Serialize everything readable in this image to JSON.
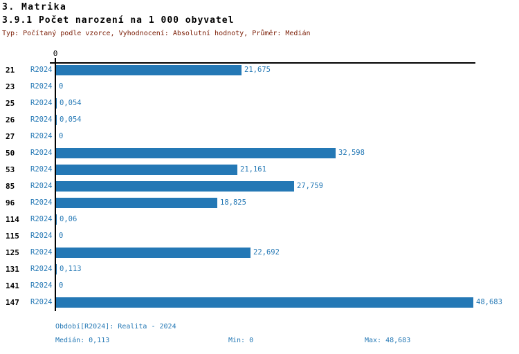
{
  "header": {
    "title": "3. Matrika",
    "subtitle": "3.9.1 Počet narození na 1 000 obyvatel",
    "meta": "Typ: Počítaný podle vzorce, Vyhodnocení: Absolutní hodnoty, Průměr: Medián"
  },
  "chart_data": {
    "type": "bar",
    "orientation": "horizontal",
    "title": "3.9.1 Počet narození na 1 000 obyvatel",
    "categories": [
      "21",
      "23",
      "25",
      "26",
      "27",
      "50",
      "53",
      "85",
      "96",
      "114",
      "115",
      "125",
      "131",
      "141",
      "147"
    ],
    "series": [
      {
        "name": "R2024",
        "values": [
          21.675,
          0,
          0.054,
          0.054,
          0,
          32.598,
          21.161,
          27.759,
          18.825,
          0.06,
          0,
          22.692,
          0.113,
          0,
          48.683
        ]
      }
    ],
    "value_labels": [
      "21,675",
      "0",
      "0,054",
      "0,054",
      "0",
      "32,598",
      "21,161",
      "27,759",
      "18,825",
      "0,06",
      "0",
      "22,692",
      "0,113",
      "0",
      "48,683"
    ],
    "xlim": [
      0,
      48.683
    ],
    "x_tick_labels": [
      "0"
    ],
    "grid": false,
    "legend_position": "none",
    "bar_color": "#2478b5",
    "statistics": {
      "median": 0.113,
      "min": 0,
      "max": 48.683
    }
  },
  "footer": {
    "period": "Období[R2024]: Realita - 2024",
    "median": "Medián: 0,113",
    "min": "Min: 0",
    "max": "Max: 48,683"
  },
  "colors": {
    "bar": "#2478b5",
    "blue_text": "#2478b5",
    "meta_text": "#7a1c04",
    "axis": "#000000"
  }
}
